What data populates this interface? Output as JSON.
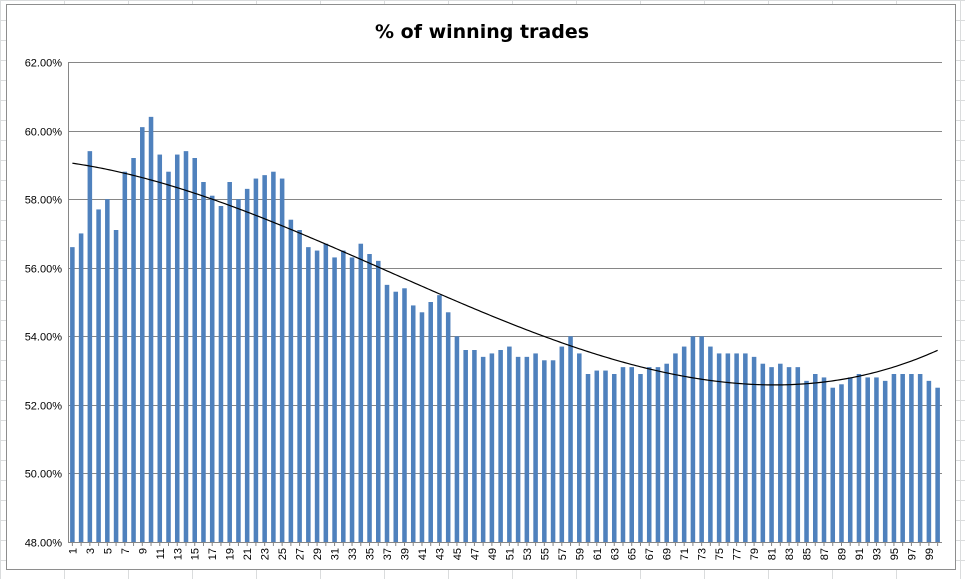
{
  "chart_data": {
    "type": "bar",
    "title": "% of winning trades",
    "xlabel": "",
    "ylabel": "",
    "ylim": [
      48,
      62
    ],
    "yticks": [
      "48.00%",
      "50.00%",
      "52.00%",
      "54.00%",
      "56.00%",
      "58.00%",
      "60.00%",
      "62.00%"
    ],
    "ytick_values": [
      48,
      50,
      52,
      54,
      56,
      58,
      60,
      62
    ],
    "grid": true,
    "legend": "none",
    "bar_color": "#4f81bd",
    "trendline": {
      "type": "polynomial",
      "color": "#000000"
    },
    "categories": [
      "1",
      "2",
      "3",
      "4",
      "5",
      "6",
      "7",
      "8",
      "9",
      "10",
      "11",
      "12",
      "13",
      "14",
      "15",
      "16",
      "17",
      "18",
      "19",
      "20",
      "21",
      "22",
      "23",
      "24",
      "25",
      "26",
      "27",
      "28",
      "29",
      "30",
      "31",
      "32",
      "33",
      "34",
      "35",
      "36",
      "37",
      "38",
      "39",
      "40",
      "41",
      "42",
      "43",
      "44",
      "45",
      "46",
      "47",
      "48",
      "49",
      "50",
      "51",
      "52",
      "53",
      "54",
      "55",
      "56",
      "57",
      "58",
      "59",
      "60",
      "61",
      "62",
      "63",
      "64",
      "65",
      "66",
      "67",
      "68",
      "69",
      "70",
      "71",
      "72",
      "73",
      "74",
      "75",
      "76",
      "77",
      "78",
      "79",
      "80",
      "81",
      "82",
      "83",
      "84",
      "85",
      "86",
      "87",
      "88",
      "89",
      "90",
      "91",
      "92",
      "93",
      "94",
      "95",
      "96",
      "97",
      "98",
      "99",
      "100"
    ],
    "values": [
      56.6,
      57.0,
      59.4,
      57.7,
      58.0,
      57.1,
      58.8,
      59.2,
      60.1,
      60.4,
      59.3,
      58.8,
      59.3,
      59.4,
      59.2,
      58.5,
      58.1,
      57.8,
      58.5,
      58.0,
      58.3,
      58.6,
      58.7,
      58.8,
      58.6,
      57.4,
      57.1,
      56.6,
      56.5,
      56.7,
      56.3,
      56.5,
      56.3,
      56.7,
      56.4,
      56.2,
      55.5,
      55.3,
      55.4,
      54.9,
      54.7,
      55.0,
      55.2,
      54.7,
      54.0,
      53.6,
      53.6,
      53.4,
      53.5,
      53.6,
      53.7,
      53.4,
      53.4,
      53.5,
      53.3,
      53.3,
      53.7,
      54.0,
      53.5,
      52.9,
      53.0,
      53.0,
      52.9,
      53.1,
      53.1,
      52.9,
      53.1,
      53.1,
      53.2,
      53.5,
      53.7,
      54.0,
      54.0,
      53.7,
      53.5,
      53.5,
      53.5,
      53.5,
      53.4,
      53.2,
      53.1,
      53.2,
      53.1,
      53.1,
      52.7,
      52.9,
      52.8,
      52.5,
      52.6,
      52.8,
      52.9,
      52.8,
      52.8,
      52.7,
      52.9,
      52.9,
      52.9,
      52.9,
      52.7,
      52.5
    ]
  }
}
